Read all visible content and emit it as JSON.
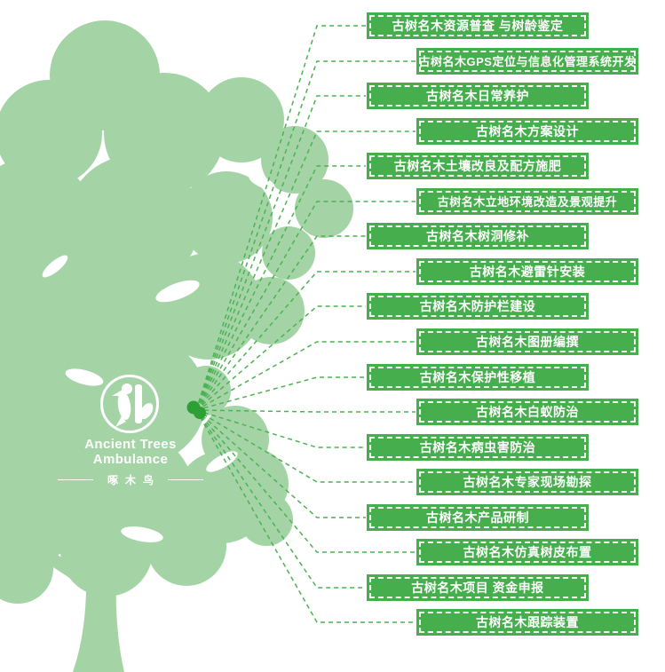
{
  "colors": {
    "banner_green": "#46ae4c",
    "tree_green": "#a4d4a6",
    "line_green": "#4db253",
    "hub_green": "#2da035",
    "white": "#ffffff"
  },
  "logo": {
    "title": "Ancient Trees Ambulance",
    "subtitle": "啄木鸟"
  },
  "services": [
    "古树名木资源普查 与树龄鉴定",
    "古树名木GPS定位与信息化管理系统开发",
    "古树名木日常养护",
    "古树名木方案设计",
    "古树名木土壤改良及配方施肥",
    "古树名木立地环境改造及景观提升",
    "古树名木树洞修补",
    "古树名木避雷针安装",
    "古树名木防护栏建设",
    "古树名木图册编撰",
    "古树名木保护性移植",
    "古树名木白蚁防治",
    "古树名木病虫害防治",
    "古树名木专家现场勘探",
    "古树名木产品研制",
    "古树名木仿真树皮布置",
    "古树名木项目 资金申报",
    "古树名木跟踪装置"
  ]
}
